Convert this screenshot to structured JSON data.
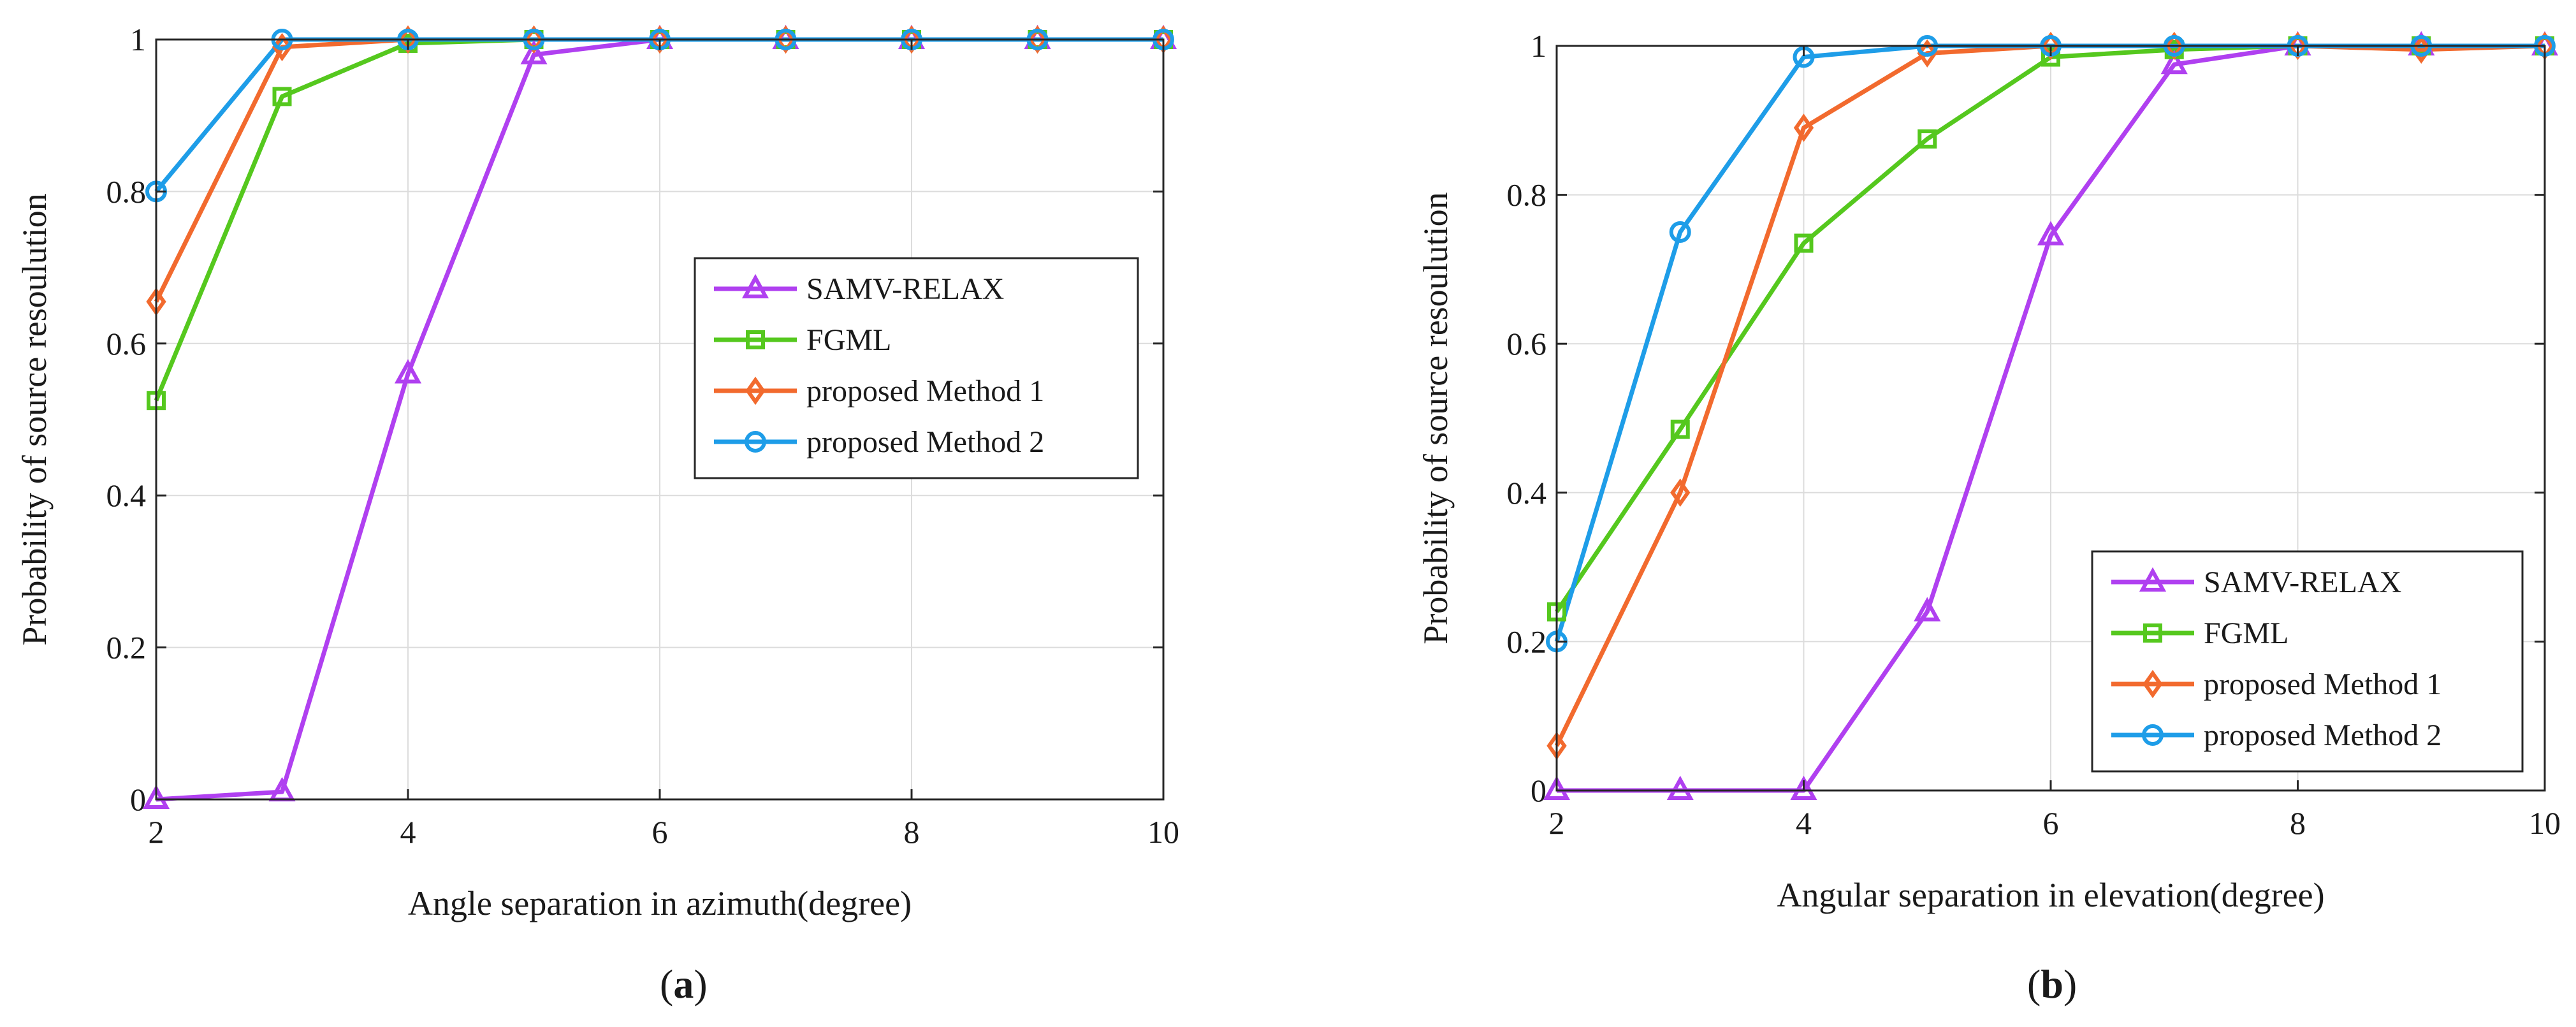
{
  "colors": {
    "samv": "#b040f0",
    "fgml": "#55c81e",
    "method1": "#f26a2e",
    "method2": "#1e9de8",
    "grid": "#dcdcdc",
    "axis": "#262626"
  },
  "chart_data": [
    {
      "type": "line",
      "caption_letter": "a",
      "xlabel": "Angle separation in azimuth(degree)",
      "ylabel": "Probability of source resoulution",
      "xlim": [
        2,
        10
      ],
      "ylim": [
        0,
        1
      ],
      "xticks": [
        2,
        4,
        6,
        8,
        10
      ],
      "yticks": [
        0,
        0.2,
        0.4,
        0.6,
        0.8,
        1
      ],
      "xtick_labels": [
        "2",
        "4",
        "6",
        "8",
        "10"
      ],
      "ytick_labels": [
        "0",
        "0.2",
        "0.4",
        "0.6",
        "0.8",
        "1"
      ],
      "grid": true,
      "legend_position": "center-right",
      "x": [
        2,
        3,
        4,
        5,
        6,
        7,
        8,
        9,
        10
      ],
      "series": [
        {
          "name": "SAMV-RELAX",
          "marker": "triangle",
          "color_key": "samv",
          "values": [
            0,
            0.01,
            0.56,
            0.98,
            1,
            1,
            1,
            1,
            1
          ]
        },
        {
          "name": "FGML",
          "marker": "square",
          "color_key": "fgml",
          "values": [
            0.525,
            0.925,
            0.995,
            1,
            1,
            1,
            1,
            1,
            1
          ]
        },
        {
          "name": "proposed Method 1",
          "marker": "diamond",
          "color_key": "method1",
          "values": [
            0.655,
            0.99,
            1,
            1,
            1,
            1,
            1,
            1,
            1
          ]
        },
        {
          "name": "proposed Method 2",
          "marker": "circle",
          "color_key": "method2",
          "values": [
            0.8,
            1,
            1,
            1,
            1,
            1,
            1,
            1,
            1
          ]
        }
      ]
    },
    {
      "type": "line",
      "caption_letter": "b",
      "xlabel": "Angular separation in elevation(degree)",
      "ylabel": "Probability of source resoulution",
      "xlim": [
        2,
        10
      ],
      "ylim": [
        0,
        1
      ],
      "xticks": [
        2,
        4,
        6,
        8,
        10
      ],
      "yticks": [
        0,
        0.2,
        0.4,
        0.6,
        0.8,
        1
      ],
      "xtick_labels": [
        "2",
        "4",
        "6",
        "8",
        "10"
      ],
      "ytick_labels": [
        "0",
        "0.2",
        "0.4",
        "0.6",
        "0.8",
        "1"
      ],
      "grid": true,
      "legend_position": "bottom-right",
      "x": [
        2,
        3,
        4,
        5,
        6,
        7,
        8,
        9,
        10
      ],
      "series": [
        {
          "name": "SAMV-RELAX",
          "marker": "triangle",
          "color_key": "samv",
          "values": [
            0,
            0,
            0,
            0.24,
            0.745,
            0.975,
            1,
            1,
            1
          ]
        },
        {
          "name": "FGML",
          "marker": "square",
          "color_key": "fgml",
          "values": [
            0.24,
            0.485,
            0.735,
            0.875,
            0.985,
            0.995,
            1,
            1,
            1
          ]
        },
        {
          "name": "proposed Method 1",
          "marker": "diamond",
          "color_key": "method1",
          "values": [
            0.06,
            0.4,
            0.89,
            0.99,
            1,
            1,
            1,
            0.995,
            1
          ]
        },
        {
          "name": "proposed Method 2",
          "marker": "circle",
          "color_key": "method2",
          "values": [
            0.2,
            0.75,
            0.985,
            1,
            1,
            1,
            1,
            1,
            1
          ]
        }
      ]
    }
  ]
}
